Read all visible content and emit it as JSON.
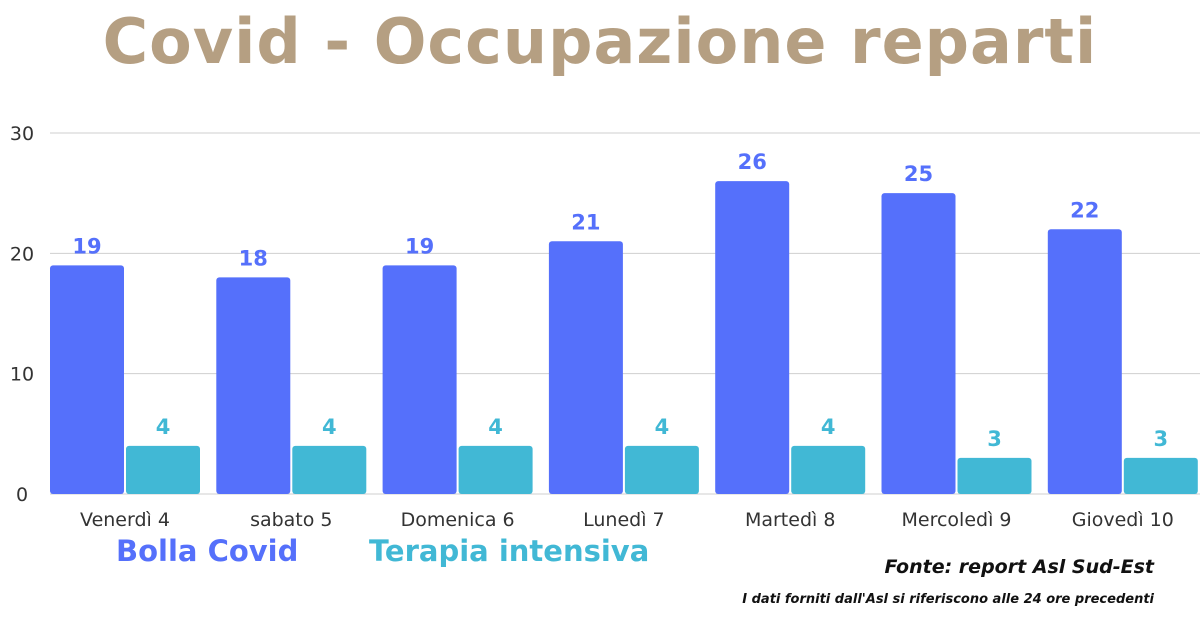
{
  "title": "Covid - Occupazione reparti",
  "colors": {
    "title": "#b59f82",
    "bolla": "#5570fb",
    "terapia": "#41b8d5",
    "grid": "#cfcfcf",
    "axis_text": "#333333"
  },
  "legend": {
    "bolla": "Bolla Covid",
    "terapia": "Terapia intensiva"
  },
  "source": "Fonte: report Asl Sud-Est",
  "note": "I dati forniti dall'Asl si riferiscono alle 24 ore precedenti",
  "chart_data": {
    "type": "bar",
    "title": "Covid - Occupazione reparti",
    "categories": [
      "Venerdì 4",
      "sabato 5",
      "Domenica 6",
      "Lunedì 7",
      "Martedì 8",
      "Mercoledì 9",
      "Giovedì 10"
    ],
    "series": [
      {
        "name": "Bolla Covid",
        "values": [
          19,
          18,
          19,
          21,
          26,
          25,
          22
        ]
      },
      {
        "name": "Terapia intensiva",
        "values": [
          4,
          4,
          4,
          4,
          4,
          3,
          3
        ]
      }
    ],
    "yticks": [
      0,
      10,
      20,
      30
    ],
    "ylim": [
      0,
      30
    ],
    "grid": true,
    "legend_position": "bottom-left",
    "data_labels": true
  }
}
